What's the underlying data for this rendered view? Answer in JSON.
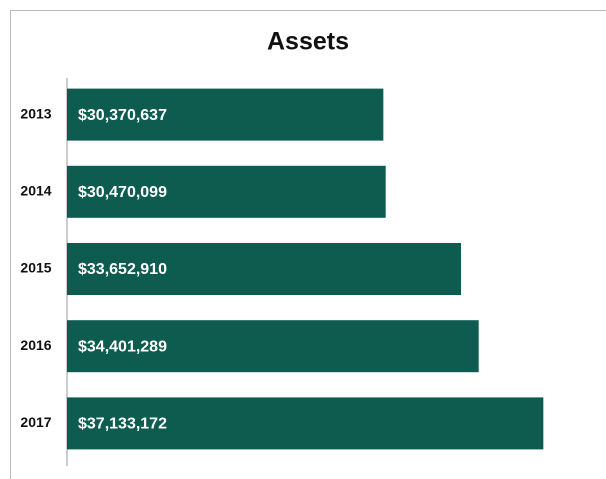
{
  "chart_data": {
    "type": "bar",
    "orientation": "horizontal",
    "title": "Assets",
    "categories": [
      "2013",
      "2014",
      "2015",
      "2016",
      "2017"
    ],
    "values": [
      30370637,
      30470099,
      33652910,
      34401289,
      37133172
    ],
    "value_labels": [
      "$30,370,637",
      "$30,470,099",
      "$33,652,910",
      "$34,401,289",
      "$37,133,172"
    ],
    "color": "#0d5c4f",
    "xlim": [
      17000000,
      39000000
    ]
  }
}
